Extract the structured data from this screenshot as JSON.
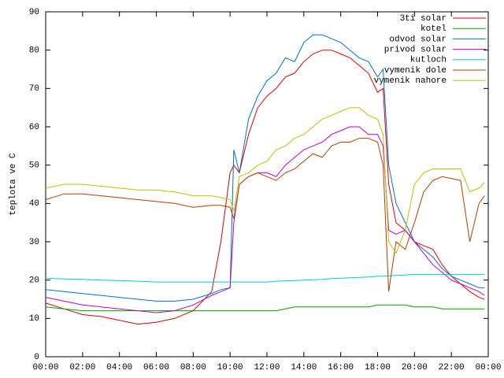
{
  "chart_data": {
    "type": "line",
    "y_label": "teplota ve C",
    "xlim": [
      0,
      24
    ],
    "xticks": [
      {
        "value": 0,
        "label": "00:00"
      },
      {
        "value": 2,
        "label": "02:00"
      },
      {
        "value": 4,
        "label": "04:00"
      },
      {
        "value": 6,
        "label": "06:00"
      },
      {
        "value": 8,
        "label": "08:00"
      },
      {
        "value": 10,
        "label": "10:00"
      },
      {
        "value": 12,
        "label": "12:00"
      },
      {
        "value": 14,
        "label": "14:00"
      },
      {
        "value": 16,
        "label": "16:00"
      },
      {
        "value": 18,
        "label": "18:00"
      },
      {
        "value": 20,
        "label": "20:00"
      },
      {
        "value": 22,
        "label": "22:00"
      },
      {
        "value": 24,
        "label": "00:00"
      }
    ],
    "ylim": [
      0,
      90
    ],
    "yticks": [
      0,
      10,
      20,
      30,
      40,
      50,
      60,
      70,
      80,
      90
    ],
    "legend": "top-right",
    "x": [
      0,
      1,
      2,
      3,
      4,
      5,
      6,
      7,
      8,
      9,
      9.5,
      10,
      10.2,
      10.5,
      11,
      11.5,
      12,
      12.5,
      13,
      13.5,
      14,
      14.5,
      15,
      15.5,
      16,
      16.5,
      17,
      17.5,
      18,
      18.3,
      18.6,
      19,
      19.5,
      20,
      20.5,
      21,
      21.5,
      22,
      22.5,
      23,
      23.5,
      23.8
    ],
    "series": [
      {
        "name": "3ti solar",
        "color": "#e00000",
        "values": [
          14,
          12.5,
          11,
          10.5,
          9.5,
          8.5,
          9,
          10,
          12,
          17,
          30,
          48,
          50,
          48,
          58,
          65,
          68,
          70,
          73,
          74,
          77,
          79,
          80,
          80,
          79,
          78,
          76,
          74,
          69,
          70,
          45,
          35,
          33,
          30,
          29,
          28,
          24,
          21,
          19,
          17,
          15.5,
          15
        ]
      },
      {
        "name": "kotel",
        "color": "#00a000",
        "values": [
          13,
          12.5,
          12,
          12,
          12,
          12,
          12,
          12,
          12,
          12,
          12,
          12,
          12,
          12,
          12,
          12,
          12,
          12,
          12.5,
          13,
          13,
          13,
          13,
          13,
          13,
          13,
          13,
          13,
          13.5,
          13.5,
          13.5,
          13.5,
          13.5,
          13,
          13,
          13,
          12.5,
          12.5,
          12.5,
          12.5,
          12.5,
          12.5
        ]
      },
      {
        "name": "odvod solar",
        "color": "#0070d0",
        "values": [
          17.5,
          17,
          16.5,
          16,
          15.5,
          15,
          14.5,
          14.5,
          15,
          16.5,
          17.5,
          18,
          54,
          48,
          62,
          68,
          72,
          74,
          78,
          77,
          82,
          84,
          84,
          83,
          82,
          80,
          78,
          77,
          73,
          75,
          50,
          40,
          35,
          30,
          28,
          26,
          23,
          21,
          20,
          19,
          18,
          18
        ]
      },
      {
        "name": "privod solar",
        "color": "#c000c0",
        "values": [
          15.5,
          14.5,
          13.5,
          13,
          12.5,
          12,
          11.5,
          12,
          13.5,
          16,
          17,
          18,
          35,
          45,
          47,
          48,
          48,
          47,
          50,
          52,
          54,
          55,
          56,
          58,
          59,
          60,
          60,
          58,
          58,
          55,
          33,
          32,
          33,
          30,
          27,
          24,
          22,
          20,
          19,
          18,
          17,
          16
        ]
      },
      {
        "name": "kutloch",
        "color": "#00d0d0",
        "values": [
          20.5,
          20.3,
          20.2,
          20,
          19.9,
          19.7,
          19.5,
          19.5,
          19.5,
          19.5,
          19.5,
          19.5,
          19.5,
          19.5,
          19.5,
          19.5,
          19.5,
          19.7,
          19.8,
          19.9,
          20,
          20.1,
          20.2,
          20.4,
          20.5,
          20.6,
          20.7,
          20.8,
          21,
          21,
          21.1,
          21.2,
          21.3,
          21.5,
          21.5,
          21.5,
          21.5,
          21.5,
          21.5,
          21.5,
          21.5,
          21.5
        ]
      },
      {
        "name": "vymenik dole",
        "color": "#b04000",
        "values": [
          41,
          42.5,
          42.5,
          42,
          41.5,
          41,
          40.5,
          40,
          39,
          39.5,
          39.5,
          39,
          36,
          45,
          47,
          48,
          47,
          46,
          48,
          49,
          51,
          53,
          52,
          55,
          56,
          56,
          57,
          57,
          56,
          50,
          17,
          30,
          28,
          35,
          43,
          46,
          47,
          46.5,
          46,
          30,
          40,
          42
        ]
      },
      {
        "name": "vymenik nahore",
        "color": "#c0c000",
        "values": [
          44,
          45,
          45,
          44.5,
          44,
          43.5,
          43.5,
          43,
          42,
          42,
          41.5,
          41,
          38,
          47,
          48,
          50,
          51,
          54,
          55,
          57,
          58,
          60,
          62,
          63,
          64,
          65,
          65,
          63,
          62,
          58,
          30,
          27,
          33,
          45,
          48,
          49,
          49,
          49,
          49,
          43,
          44,
          45.5
        ]
      }
    ]
  }
}
